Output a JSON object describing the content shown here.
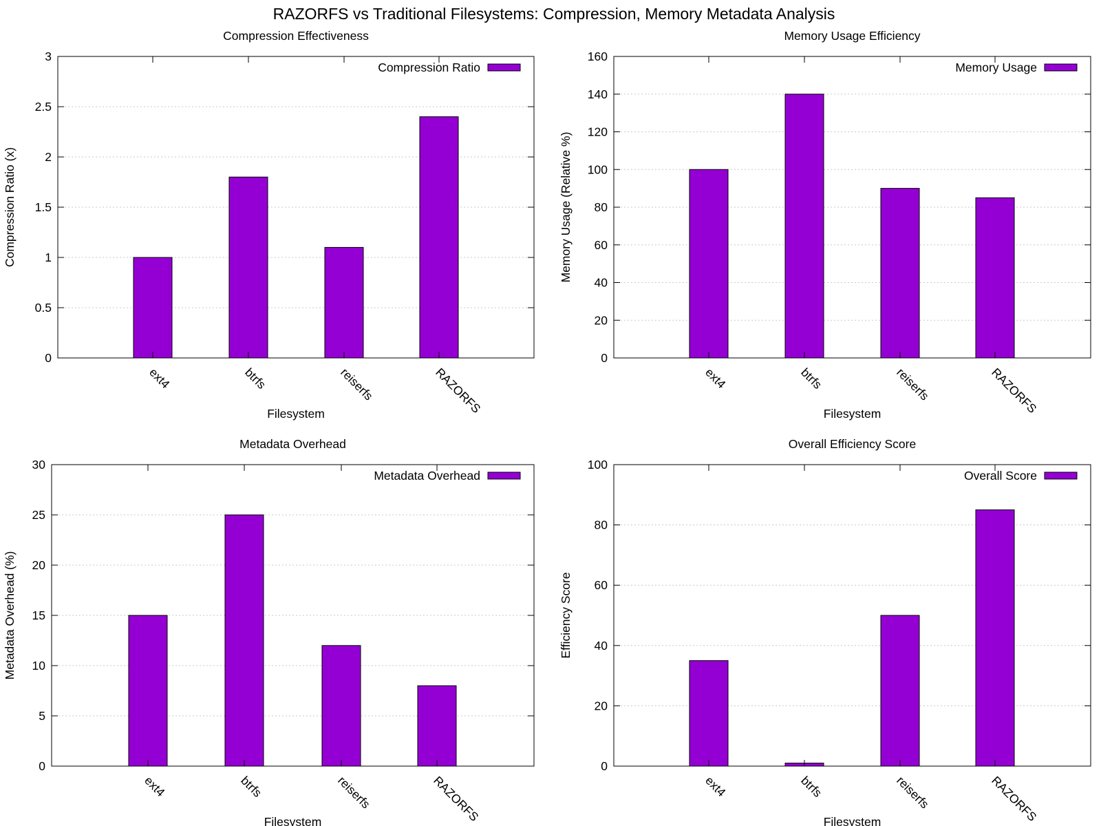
{
  "figure_title": "RAZORFS vs Traditional Filesystems: Compression, Memory  Metadata Analysis",
  "colors": {
    "bar": "#9400d3",
    "frame": "#000000",
    "grid": "#c8c8c8",
    "background": "#ffffff"
  },
  "chart_data": [
    {
      "type": "bar",
      "title": "Compression Effectiveness",
      "xlabel": "Filesystem",
      "ylabel": "Compression Ratio (x)",
      "categories": [
        "ext4",
        "btrfs",
        "reiserfs",
        "RAZORFS"
      ],
      "series": [
        {
          "name": "Compression Ratio",
          "values": [
            1.0,
            1.8,
            1.1,
            2.4
          ]
        }
      ],
      "ylim": [
        0,
        3
      ],
      "yticks": [
        "0",
        "0.5",
        "1",
        "1.5",
        "2",
        "2.5",
        "3"
      ],
      "grid": true,
      "legend": "top-right"
    },
    {
      "type": "bar",
      "title": "Memory Usage Efficiency",
      "xlabel": "Filesystem",
      "ylabel": "Memory Usage (Relative %)",
      "categories": [
        "ext4",
        "btrfs",
        "reiserfs",
        "RAZORFS"
      ],
      "series": [
        {
          "name": "Memory Usage",
          "values": [
            100,
            140,
            90,
            85
          ]
        }
      ],
      "ylim": [
        0,
        160
      ],
      "yticks": [
        "0",
        "20",
        "40",
        "60",
        "80",
        "100",
        "120",
        "140",
        "160"
      ],
      "grid": true,
      "legend": "top-right"
    },
    {
      "type": "bar",
      "title": "Metadata Overhead",
      "xlabel": "Filesystem",
      "ylabel": "Metadata Overhead (%)",
      "categories": [
        "ext4",
        "btrfs",
        "reiserfs",
        "RAZORFS"
      ],
      "series": [
        {
          "name": "Metadata Overhead",
          "values": [
            15,
            25,
            12,
            8
          ]
        }
      ],
      "ylim": [
        0,
        30
      ],
      "yticks": [
        "0",
        "5",
        "10",
        "15",
        "20",
        "25",
        "30"
      ],
      "grid": true,
      "legend": "top-right"
    },
    {
      "type": "bar",
      "title": "Overall Efficiency Score",
      "xlabel": "Filesystem",
      "ylabel": "Efficiency Score",
      "categories": [
        "ext4",
        "btrfs",
        "reiserfs",
        "RAZORFS"
      ],
      "series": [
        {
          "name": "Overall Score",
          "values": [
            35,
            1,
            50,
            85
          ]
        }
      ],
      "ylim": [
        0,
        100
      ],
      "yticks": [
        "0",
        "20",
        "40",
        "60",
        "80",
        "100"
      ],
      "grid": true,
      "legend": "top-right"
    }
  ]
}
